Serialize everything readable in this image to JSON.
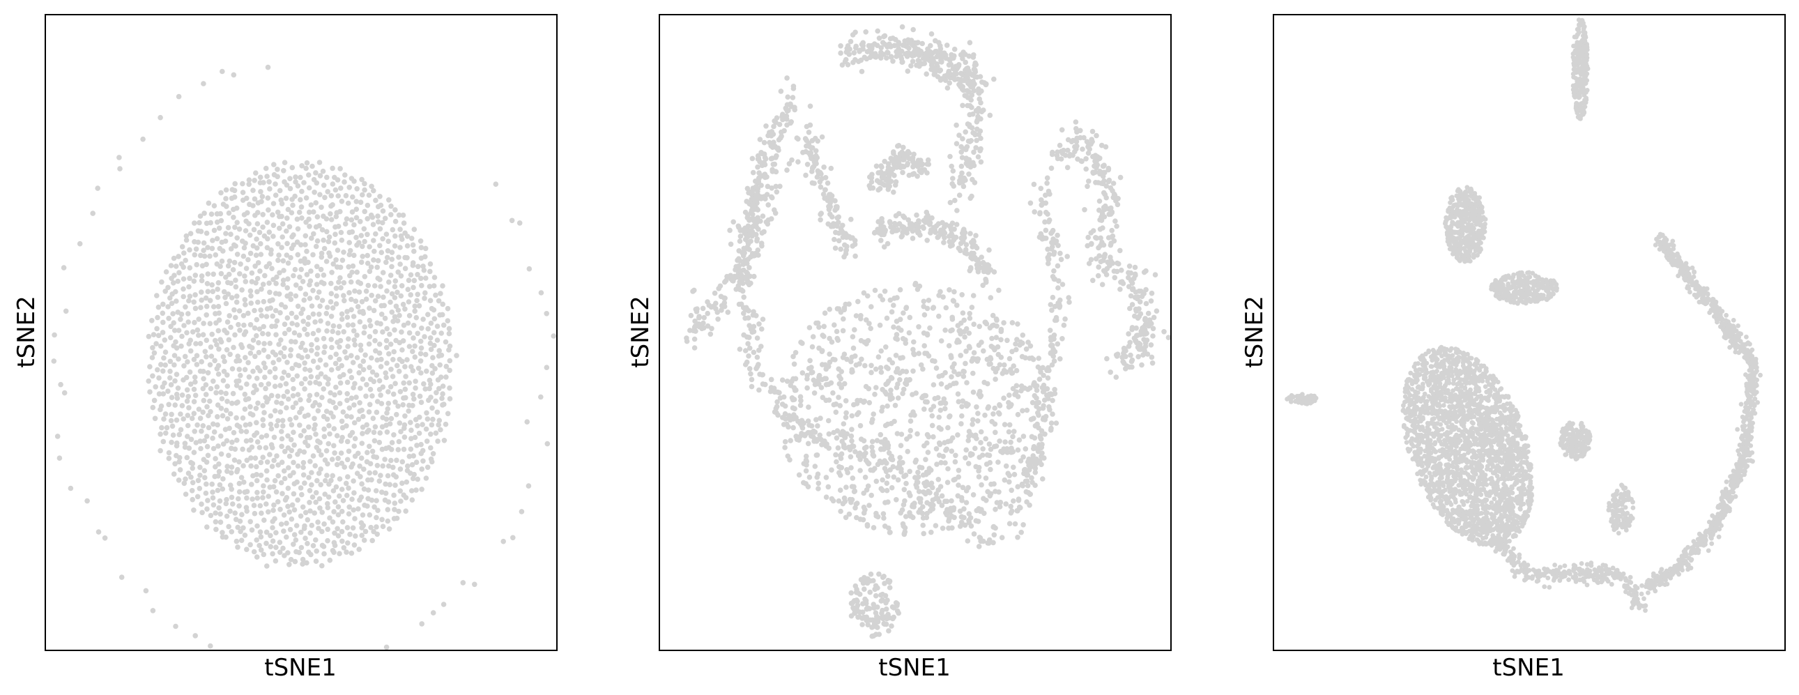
{
  "point_color": "#d3d3d3",
  "chart_data": [
    {
      "type": "scatter",
      "title": "",
      "xlabel": "tSNE1",
      "ylabel": "tSNE2",
      "grid": false,
      "ticks": false,
      "xlim": [
        0,
        100
      ],
      "ylim": [
        0,
        100
      ],
      "n_points": 2000,
      "structure": [
        {
          "shape": "disk",
          "center": [
            50,
            55
          ],
          "radius": [
            30,
            32
          ],
          "density": "sunflower"
        },
        {
          "shape": "ring",
          "center": [
            50,
            55
          ],
          "radius": 48,
          "start_deg": 100,
          "end_deg": 400,
          "count": 58
        }
      ]
    },
    {
      "type": "scatter",
      "title": "",
      "xlabel": "tSNE1",
      "ylabel": "tSNE2",
      "grid": false,
      "ticks": false,
      "xlim": [
        0,
        100
      ],
      "ylim": [
        0,
        100
      ],
      "n_points": 3000,
      "structure": [
        {
          "shape": "blob",
          "center": [
            50,
            62
          ],
          "radius": [
            27,
            20
          ],
          "weight": 0.3
        },
        {
          "shape": "curve",
          "path": [
            [
              20,
              24
            ],
            [
              16,
              36
            ],
            [
              18,
              55
            ],
            [
              26,
              64
            ],
            [
              39,
              68
            ],
            [
              50,
              73
            ],
            [
              59,
              80
            ],
            [
              64,
              83
            ],
            [
              69,
              80
            ],
            [
              73,
              72
            ],
            [
              76,
              60
            ],
            [
              78,
              46
            ],
            [
              77,
              37
            ],
            [
              74,
              26
            ]
          ],
          "width": 2.2,
          "weight": 0.16
        },
        {
          "shape": "curve",
          "path": [
            [
              5,
              51
            ],
            [
              12,
              44
            ],
            [
              18,
              37
            ],
            [
              20,
              28
            ],
            [
              23,
              18
            ],
            [
              27,
              12
            ]
          ],
          "width": 3,
          "weight": 0.08
        },
        {
          "shape": "curve",
          "path": [
            [
              36,
              6
            ],
            [
              46,
              5
            ],
            [
              55,
              8
            ],
            [
              63,
              12
            ]
          ],
          "width": 2.5,
          "weight": 0.07
        },
        {
          "shape": "curve",
          "path": [
            [
              48,
              5
            ],
            [
              60,
              7
            ],
            [
              62,
              18
            ],
            [
              58,
              28
            ]
          ],
          "width": 2.5,
          "weight": 0.06
        },
        {
          "shape": "curve",
          "path": [
            [
              77,
              22
            ],
            [
              83,
              20
            ],
            [
              88,
              28
            ],
            [
              86,
              38
            ],
            [
              93,
              42
            ],
            [
              96,
              50
            ],
            [
              89,
              56
            ]
          ],
          "width": 3,
          "weight": 0.1
        },
        {
          "shape": "curve",
          "path": [
            [
              43,
              34
            ],
            [
              52,
              33
            ],
            [
              61,
              36
            ],
            [
              64,
              42
            ]
          ],
          "width": 2.2,
          "weight": 0.06
        },
        {
          "shape": "curve",
          "path": [
            [
              43,
              27
            ],
            [
              48,
              22
            ],
            [
              52,
              25
            ]
          ],
          "width": 2,
          "weight": 0.04
        },
        {
          "shape": "blob",
          "center": [
            42,
            93
          ],
          "radius": [
            5,
            5
          ],
          "weight": 0.04
        },
        {
          "shape": "curve",
          "path": [
            [
              28,
              18
            ],
            [
              33,
              30
            ],
            [
              38,
              38
            ]
          ],
          "width": 2,
          "weight": 0.04
        }
      ]
    },
    {
      "type": "scatter",
      "title": "",
      "xlabel": "tSNE1",
      "ylabel": "tSNE2",
      "grid": false,
      "ticks": false,
      "xlim": [
        0,
        100
      ],
      "ylim": [
        0,
        100
      ],
      "n_points": 5000,
      "structure": [
        {
          "shape": "blob",
          "center": [
            38,
            68
          ],
          "radius": [
            11,
            17
          ],
          "angle": -30,
          "weight": 0.42
        },
        {
          "shape": "curve",
          "path": [
            [
              41,
              80
            ],
            [
              49,
              88
            ],
            [
              56,
              88
            ],
            [
              68,
              88
            ],
            [
              72,
              93
            ]
          ],
          "width": 1.4,
          "weight": 0.06
        },
        {
          "shape": "curve",
          "path": [
            [
              75,
              35
            ],
            [
              85,
              45
            ],
            [
              94,
              55
            ],
            [
              92,
              70
            ],
            [
              87,
              80
            ],
            [
              78,
              88
            ],
            [
              73,
              90
            ]
          ],
          "width": 1.3,
          "weight": 0.17
        },
        {
          "shape": "blob",
          "center": [
            60,
            8.5
          ],
          "radius": [
            1.5,
            8
          ],
          "weight": 0.05
        },
        {
          "shape": "blob",
          "center": [
            37.5,
            33
          ],
          "radius": [
            4,
            6
          ],
          "weight": 0.08
        },
        {
          "shape": "blob",
          "center": [
            49,
            43
          ],
          "radius": [
            6.5,
            2.5
          ],
          "weight": 0.05
        },
        {
          "shape": "blob",
          "center": [
            59,
            67
          ],
          "radius": [
            3,
            3
          ],
          "weight": 0.03
        },
        {
          "shape": "blob",
          "center": [
            5.5,
            60.5
          ],
          "radius": [
            3,
            0.8
          ],
          "weight": 0.01
        },
        {
          "shape": "blob",
          "center": [
            68,
            78
          ],
          "radius": [
            2.5,
            4
          ],
          "weight": 0.02
        }
      ]
    }
  ]
}
